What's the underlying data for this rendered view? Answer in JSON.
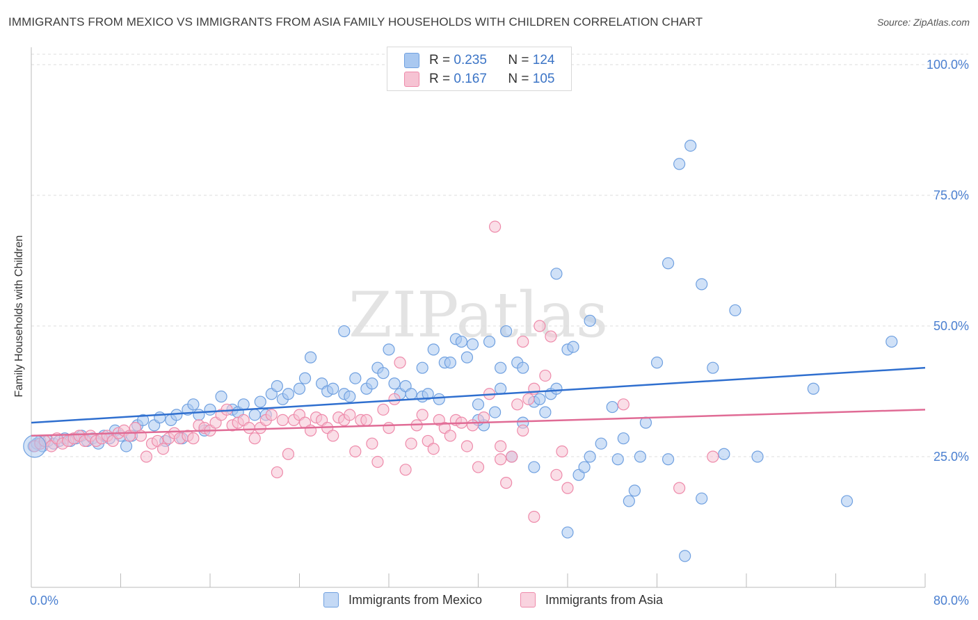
{
  "title": "IMMIGRANTS FROM MEXICO VS IMMIGRANTS FROM ASIA FAMILY HOUSEHOLDS WITH CHILDREN CORRELATION CHART",
  "source": "Source: ZipAtlas.com",
  "watermark": "ZIPatlas",
  "colors": {
    "mexico": "#6fa0e0",
    "mexico_fill": "#a9c8f0",
    "mexico_line": "#2f6fcf",
    "asia": "#ee8aaa",
    "asia_fill": "#f6c3d3",
    "asia_line": "#e06b95",
    "axis_text": "#4a7fd0"
  },
  "legend": {
    "mexico": {
      "r_label": "R =",
      "r_value": "0.235",
      "n_label": "N =",
      "n_value": "124"
    },
    "asia": {
      "r_label": "R =",
      "r_value": "0.167",
      "n_label": "N =",
      "n_value": "105"
    }
  },
  "chart_data": {
    "type": "scatter",
    "title": "IMMIGRANTS FROM MEXICO VS IMMIGRANTS FROM ASIA FAMILY HOUSEHOLDS WITH CHILDREN CORRELATION CHART",
    "xlabel": "",
    "ylabel": "Family Households with Children",
    "xlim": [
      0,
      80
    ],
    "ylim": [
      0,
      102
    ],
    "x_tick_labels": [
      "0.0%",
      "80.0%"
    ],
    "y_ticks": [
      25,
      50,
      75,
      100
    ],
    "y_tick_labels": [
      "25.0%",
      "50.0%",
      "75.0%",
      "100.0%"
    ],
    "legend_position": "bottom-center",
    "series": [
      {
        "name": "Immigrants from Mexico",
        "r": 0.235,
        "n": 124,
        "trend": {
          "x0": 0,
          "y0": 31.5,
          "x1": 80,
          "y1": 42
        },
        "points": [
          [
            0.2,
            27
          ],
          [
            0.5,
            27.5
          ],
          [
            0.8,
            28
          ],
          [
            1.0,
            27
          ],
          [
            1.5,
            28
          ],
          [
            2.0,
            27.5
          ],
          [
            2.5,
            28
          ],
          [
            3.0,
            28.5
          ],
          [
            3.5,
            28
          ],
          [
            4.0,
            28.5
          ],
          [
            4.5,
            29
          ],
          [
            5.0,
            28
          ],
          [
            5.5,
            28.5
          ],
          [
            6.0,
            27.5
          ],
          [
            6.5,
            29
          ],
          [
            7.0,
            28.5
          ],
          [
            7.5,
            30
          ],
          [
            8.0,
            29
          ],
          [
            8.5,
            27
          ],
          [
            9.0,
            29
          ],
          [
            9.5,
            31
          ],
          [
            10,
            32
          ],
          [
            11,
            31
          ],
          [
            11.5,
            32.5
          ],
          [
            12,
            28
          ],
          [
            12.5,
            32
          ],
          [
            13,
            33
          ],
          [
            13.5,
            28.5
          ],
          [
            14,
            34
          ],
          [
            14.5,
            35
          ],
          [
            15,
            33
          ],
          [
            15.5,
            30
          ],
          [
            16,
            34
          ],
          [
            17,
            36.5
          ],
          [
            18,
            34
          ],
          [
            18.5,
            33.5
          ],
          [
            19,
            35
          ],
          [
            20,
            33
          ],
          [
            20.5,
            35.5
          ],
          [
            21,
            33
          ],
          [
            21.5,
            37
          ],
          [
            22,
            38.5
          ],
          [
            22.5,
            36
          ],
          [
            23,
            37
          ],
          [
            24,
            38
          ],
          [
            24.5,
            40
          ],
          [
            25,
            44
          ],
          [
            26,
            39
          ],
          [
            26.5,
            37.5
          ],
          [
            27,
            38
          ],
          [
            28,
            37
          ],
          [
            28,
            49
          ],
          [
            28.5,
            36.5
          ],
          [
            29,
            40
          ],
          [
            30,
            38
          ],
          [
            30.5,
            39
          ],
          [
            31,
            42
          ],
          [
            31.5,
            41
          ],
          [
            32,
            45.5
          ],
          [
            32.5,
            39
          ],
          [
            33,
            37
          ],
          [
            33.5,
            38.5
          ],
          [
            34,
            37
          ],
          [
            35,
            36.5
          ],
          [
            35,
            42
          ],
          [
            35.5,
            37
          ],
          [
            36,
            45.5
          ],
          [
            36.5,
            36
          ],
          [
            37,
            43
          ],
          [
            37.5,
            43
          ],
          [
            38,
            47.5
          ],
          [
            38.5,
            47
          ],
          [
            39,
            44
          ],
          [
            39.5,
            46.5
          ],
          [
            40,
            35
          ],
          [
            40.5,
            31
          ],
          [
            40,
            32
          ],
          [
            41,
            47
          ],
          [
            41.5,
            33.5
          ],
          [
            42,
            42
          ],
          [
            42,
            38
          ],
          [
            42.5,
            49
          ],
          [
            43,
            25
          ],
          [
            43.5,
            43
          ],
          [
            44,
            42
          ],
          [
            44,
            31.5
          ],
          [
            45,
            35.5
          ],
          [
            45,
            23
          ],
          [
            45.5,
            36
          ],
          [
            46,
            33.5
          ],
          [
            46.5,
            37
          ],
          [
            47,
            38
          ],
          [
            47,
            60
          ],
          [
            48,
            10.5
          ],
          [
            48,
            45.5
          ],
          [
            48.5,
            46
          ],
          [
            49,
            21.5
          ],
          [
            49.5,
            23
          ],
          [
            50,
            25
          ],
          [
            50,
            51
          ],
          [
            51,
            27.5
          ],
          [
            52,
            34.5
          ],
          [
            52.5,
            24.5
          ],
          [
            53,
            28.5
          ],
          [
            53.5,
            16.5
          ],
          [
            54,
            18.5
          ],
          [
            54.5,
            25
          ],
          [
            55,
            31.5
          ],
          [
            56,
            43
          ],
          [
            57,
            24.5
          ],
          [
            57,
            62
          ],
          [
            58,
            81
          ],
          [
            58.5,
            6
          ],
          [
            59,
            84.5
          ],
          [
            60,
            58
          ],
          [
            60,
            17
          ],
          [
            61,
            42
          ],
          [
            62,
            25.5
          ],
          [
            63,
            53
          ],
          [
            65,
            25
          ],
          [
            70,
            38
          ],
          [
            73,
            16.5
          ],
          [
            77,
            47
          ]
        ]
      },
      {
        "name": "Immigrants from Asia",
        "r": 0.167,
        "n": 105,
        "trend": {
          "x0": 0,
          "y0": 29,
          "x1": 80,
          "y1": 34
        },
        "points": [
          [
            0.3,
            27
          ],
          [
            0.8,
            27.5
          ],
          [
            1.2,
            28
          ],
          [
            1.8,
            27
          ],
          [
            2.3,
            28.5
          ],
          [
            2.8,
            27.5
          ],
          [
            3.3,
            28
          ],
          [
            3.8,
            28.5
          ],
          [
            4.3,
            29
          ],
          [
            4.8,
            28
          ],
          [
            5.3,
            29
          ],
          [
            5.8,
            28
          ],
          [
            6.3,
            28.5
          ],
          [
            6.8,
            29
          ],
          [
            7.3,
            28
          ],
          [
            7.8,
            29.5
          ],
          [
            8.3,
            30
          ],
          [
            8.8,
            29
          ],
          [
            9.3,
            30.5
          ],
          [
            9.8,
            29
          ],
          [
            10.3,
            25
          ],
          [
            10.8,
            27.5
          ],
          [
            11.3,
            28
          ],
          [
            11.8,
            26.5
          ],
          [
            12.3,
            28.5
          ],
          [
            12.8,
            29.5
          ],
          [
            13.3,
            28.5
          ],
          [
            14,
            29
          ],
          [
            14.5,
            28.5
          ],
          [
            15,
            31
          ],
          [
            15.5,
            30.5
          ],
          [
            16,
            30
          ],
          [
            16.5,
            31.5
          ],
          [
            17,
            33
          ],
          [
            17.5,
            34
          ],
          [
            18,
            31
          ],
          [
            18.5,
            31.5
          ],
          [
            19,
            32
          ],
          [
            19.5,
            30.5
          ],
          [
            20,
            28.5
          ],
          [
            20.5,
            30.5
          ],
          [
            21,
            32
          ],
          [
            21.5,
            33
          ],
          [
            22,
            22
          ],
          [
            22.5,
            32
          ],
          [
            23,
            25.5
          ],
          [
            23.5,
            32
          ],
          [
            24,
            33
          ],
          [
            24.5,
            31.5
          ],
          [
            25,
            30
          ],
          [
            25.5,
            32.5
          ],
          [
            26,
            32
          ],
          [
            26.5,
            30.5
          ],
          [
            27,
            29
          ],
          [
            27.5,
            32.5
          ],
          [
            28,
            32
          ],
          [
            28.5,
            33
          ],
          [
            29,
            26
          ],
          [
            29.5,
            32
          ],
          [
            30,
            32
          ],
          [
            30.5,
            27.5
          ],
          [
            31,
            24
          ],
          [
            31.5,
            34
          ],
          [
            32,
            30.5
          ],
          [
            32.5,
            36
          ],
          [
            33,
            43
          ],
          [
            33.5,
            22.5
          ],
          [
            34,
            27.5
          ],
          [
            34.5,
            31
          ],
          [
            35,
            33
          ],
          [
            35.5,
            28
          ],
          [
            36,
            26.5
          ],
          [
            36.5,
            32
          ],
          [
            37,
            30.5
          ],
          [
            37.5,
            29
          ],
          [
            38,
            32
          ],
          [
            38.5,
            31.5
          ],
          [
            39,
            27
          ],
          [
            39.5,
            31
          ],
          [
            40,
            23
          ],
          [
            40.5,
            32.5
          ],
          [
            41,
            37
          ],
          [
            41.5,
            69
          ],
          [
            42,
            24.5
          ],
          [
            42,
            27
          ],
          [
            42.5,
            20
          ],
          [
            43,
            25
          ],
          [
            43.5,
            35
          ],
          [
            44,
            30
          ],
          [
            44,
            47
          ],
          [
            44.5,
            36
          ],
          [
            45,
            38
          ],
          [
            45,
            13.5
          ],
          [
            45.5,
            50
          ],
          [
            46,
            40.5
          ],
          [
            46.5,
            48
          ],
          [
            47,
            21.5
          ],
          [
            47.5,
            26
          ],
          [
            48,
            19
          ],
          [
            53,
            35
          ],
          [
            58,
            19
          ],
          [
            61,
            25
          ]
        ]
      }
    ]
  },
  "axis": {
    "x_min_label": "0.0%",
    "x_max_label": "80.0%",
    "y_label": "Family Households with Children"
  },
  "legend_bottom": {
    "mexico": "Immigrants from Mexico",
    "asia": "Immigrants from Asia"
  }
}
